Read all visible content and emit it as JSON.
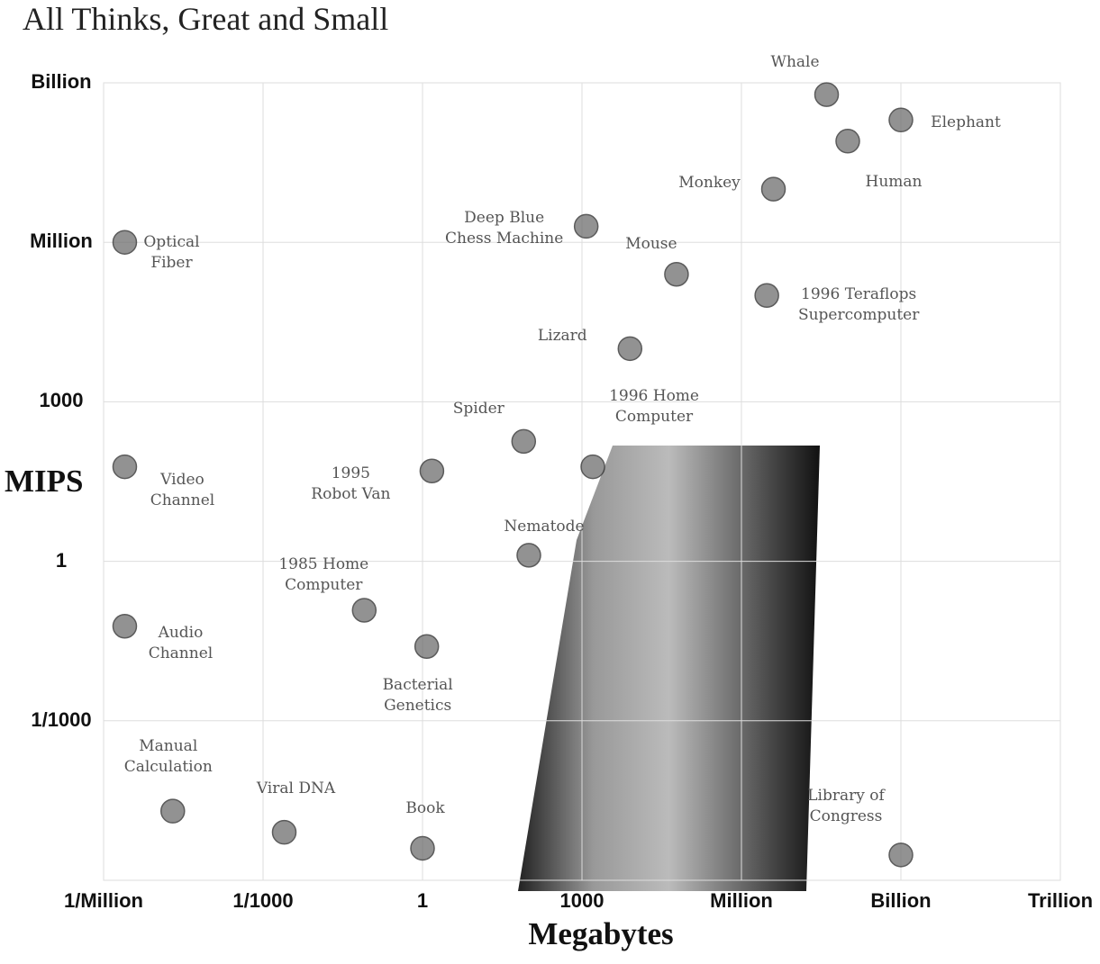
{
  "chart_data": {
    "type": "scatter",
    "title": "All Thinks, Great and Small",
    "xlabel": "Megabytes",
    "ylabel": "MIPS",
    "log_x": true,
    "log_y": true,
    "grid": true,
    "xlim": [
      1e-06,
      1000000000000
    ],
    "ylim": [
      1e-06,
      1000000000
    ],
    "xticks": [
      {
        "value": 1e-06,
        "label": "1/Million"
      },
      {
        "value": 0.001,
        "label": "1/1000"
      },
      1,
      1000,
      {
        "value": 1000000,
        "label": "Million"
      },
      {
        "value": 1000000000,
        "label": "Billion"
      },
      {
        "value": 1000000000000,
        "label": "Trillion"
      }
    ],
    "yticks": [
      {
        "value": 0.001,
        "label": "1/1000"
      },
      1,
      1000,
      {
        "value": 1000000,
        "label": "Million"
      },
      {
        "value": 1000000000,
        "label": "Billion"
      }
    ],
    "points": [
      {
        "label": "Optical\nFiber",
        "x": 2.5e-06,
        "y": 1000000
      },
      {
        "label": "Video\nChannel",
        "x": 2.5e-06,
        "y": 60
      },
      {
        "label": "Audio\nChannel",
        "x": 2.5e-06,
        "y": 0.06
      },
      {
        "label": "Manual\nCalculation",
        "x": 2e-05,
        "y": 2e-05
      },
      {
        "label": "Viral DNA",
        "x": 0.0025,
        "y": 8e-06
      },
      {
        "label": "Book",
        "x": 1,
        "y": 4e-06
      },
      {
        "label": "Bacterial\nGenetics",
        "x": 1.2,
        "y": 0.025
      },
      {
        "label": "1985 Home\nComputer",
        "x": 0.08,
        "y": 0.12
      },
      {
        "label": "Nematode",
        "x": 100,
        "y": 1.3
      },
      {
        "label": "1995\nRobot Van",
        "x": 1.5,
        "y": 50
      },
      {
        "label": "Spider",
        "x": 80,
        "y": 180
      },
      {
        "label": "1996 Home\nComputer",
        "x": 1600,
        "y": 60
      },
      {
        "label": "Lizard",
        "x": 8000,
        "y": 10000
      },
      {
        "label": "Deep Blue\nChess Machine",
        "x": 1200,
        "y": 2000000
      },
      {
        "label": "Mouse",
        "x": 60000,
        "y": 250000
      },
      {
        "label": "1996 Teraflops\nSupercomputer",
        "x": 3000000,
        "y": 100000
      },
      {
        "label": "Monkey",
        "x": 4000000,
        "y": 10000000
      },
      {
        "label": "Human",
        "x": 100000000,
        "y": 80000000
      },
      {
        "label": "Elephant",
        "x": 1000000000,
        "y": 200000000
      },
      {
        "label": "Whale",
        "x": 40000000,
        "y": 600000000
      },
      {
        "label": "Library of\nCongress",
        "x": 1000000000,
        "y": 3e-06
      }
    ]
  }
}
